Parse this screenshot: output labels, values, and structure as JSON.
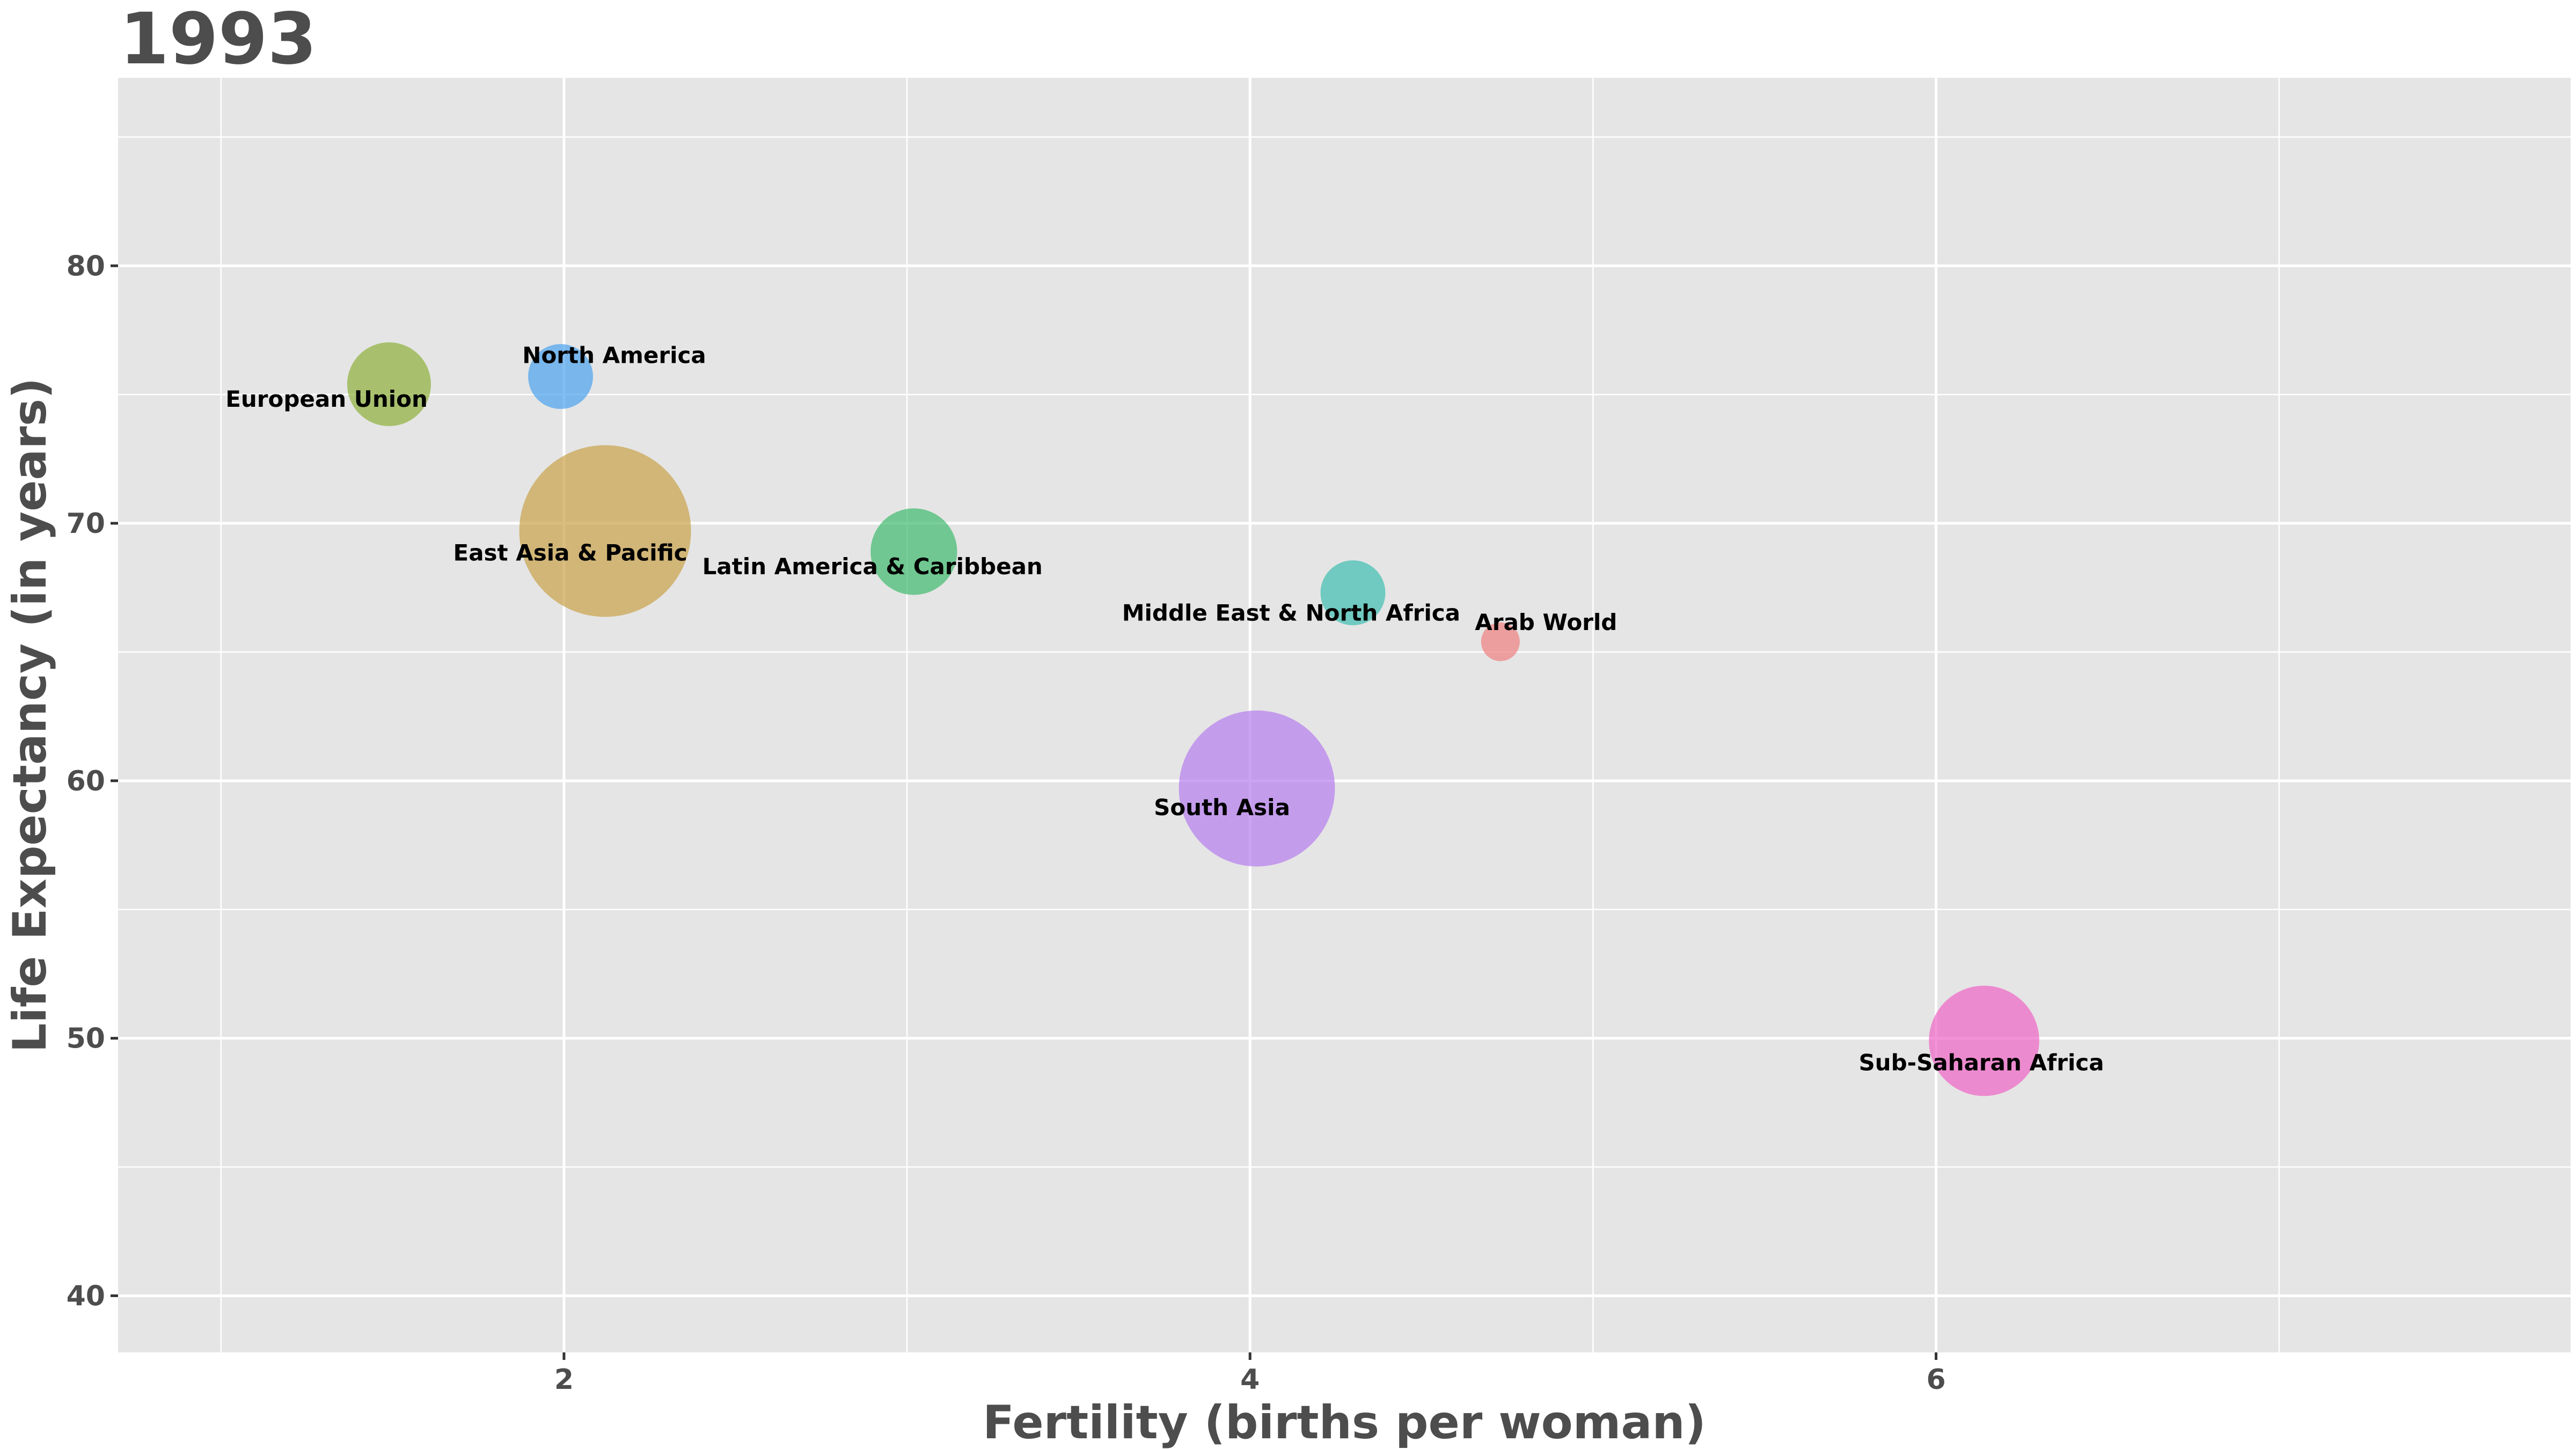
{
  "chart_data": {
    "type": "scatter",
    "title": "1993",
    "xlabel": "Fertility (births per woman)",
    "ylabel": "Life Expectancy (in years)",
    "xlim": [
      0.7,
      7.85
    ],
    "ylim": [
      37.8,
      87.3
    ],
    "x_major_ticks": [
      2,
      4,
      6
    ],
    "x_minor_ticks": [
      1,
      3,
      5,
      7
    ],
    "y_major_ticks": [
      40,
      50,
      60,
      70,
      80
    ],
    "y_minor_ticks": [
      45,
      55,
      65,
      75,
      85
    ],
    "grid": true,
    "panel_background": "#e5e5e5",
    "grid_color": "#ffffff",
    "size_encoding": "population (relative)",
    "points": [
      {
        "label": "European Union",
        "x": 1.49,
        "y": 75.4,
        "size": 0.15,
        "color": "#8fb03a",
        "label_side": "below-left"
      },
      {
        "label": "North America",
        "x": 1.99,
        "y": 75.7,
        "size": 0.09,
        "color": "#4aa3f0",
        "label_side": "above-right"
      },
      {
        "label": "East Asia & Pacific",
        "x": 2.12,
        "y": 69.7,
        "size": 0.63,
        "color": "#c9a24a",
        "label_side": "center-left"
      },
      {
        "label": "Latin America & Caribbean",
        "x": 3.02,
        "y": 68.9,
        "size": 0.16,
        "color": "#3fba6e",
        "label_side": "below-left"
      },
      {
        "label": "Middle East & North Africa",
        "x": 4.3,
        "y": 67.3,
        "size": 0.09,
        "color": "#3fbfb2",
        "label_side": "below-left"
      },
      {
        "label": "Arab World",
        "x": 4.73,
        "y": 65.4,
        "size": 0.05,
        "color": "#f08080",
        "label_side": "above-right"
      },
      {
        "label": "South Asia",
        "x": 4.02,
        "y": 59.7,
        "size": 0.52,
        "color": "#b77ef0",
        "label_side": "center-left"
      },
      {
        "label": "Sub-Saharan Africa",
        "x": 6.14,
        "y": 49.9,
        "size": 0.26,
        "color": "#ef64c6",
        "label_side": "below"
      }
    ]
  }
}
